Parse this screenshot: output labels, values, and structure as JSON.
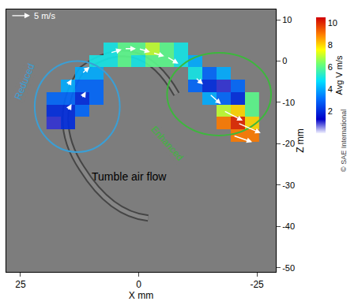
{
  "chart_data": {
    "type": "heatmap",
    "x_label": "X mm",
    "y_label": "Z mm",
    "xlim": [
      28,
      -29
    ],
    "xticks": [
      25,
      0,
      -25
    ],
    "ylim": [
      -51,
      12.5
    ],
    "yticks": [
      10,
      0,
      -10,
      -20,
      -30,
      -40,
      -50
    ],
    "x": [
      18,
      15,
      12,
      9,
      6,
      3,
      0,
      -3,
      -6,
      -9,
      -12,
      -15,
      -18,
      -21,
      -24
    ],
    "y": [
      3,
      0,
      -3,
      -6,
      -9,
      -12,
      -15,
      -18
    ],
    "values": [
      [
        null,
        null,
        null,
        null,
        5,
        6,
        6,
        7,
        6,
        5,
        null,
        null,
        null,
        null,
        null
      ],
      [
        null,
        null,
        null,
        5,
        5,
        6,
        5,
        6,
        6,
        5,
        4,
        null,
        null,
        null,
        null
      ],
      [
        null,
        null,
        4,
        4,
        null,
        null,
        null,
        null,
        null,
        null,
        5,
        3,
        4,
        null,
        null
      ],
      [
        null,
        4,
        3,
        3,
        null,
        null,
        null,
        null,
        null,
        null,
        3,
        2,
        1,
        3,
        null
      ],
      [
        3,
        3,
        2,
        3,
        null,
        null,
        null,
        null,
        null,
        null,
        null,
        4,
        3,
        2,
        6
      ],
      [
        2,
        2,
        3,
        null,
        null,
        null,
        null,
        null,
        null,
        null,
        null,
        null,
        7,
        8,
        6
      ],
      [
        1,
        2,
        null,
        null,
        null,
        null,
        null,
        null,
        null,
        null,
        null,
        null,
        9,
        10,
        8
      ],
      [
        null,
        null,
        null,
        null,
        null,
        null,
        null,
        null,
        null,
        null,
        null,
        null,
        null,
        9,
        9
      ]
    ],
    "colorbar": {
      "title": "Avg V m/s",
      "range": [
        0,
        10.5
      ],
      "ticks": [
        2,
        4,
        6,
        8,
        10
      ]
    },
    "vectors": [
      {
        "x": 15,
        "y": -12,
        "u": -1,
        "w": 2
      },
      {
        "x": 12,
        "y": -9,
        "u": -1,
        "w": 2
      },
      {
        "x": 15,
        "y": -6,
        "u": -1,
        "w": 2
      },
      {
        "x": 12,
        "y": -3,
        "u": -2,
        "w": 2
      },
      {
        "x": 6,
        "y": 2,
        "u": -3,
        "w": 1
      },
      {
        "x": 3,
        "y": 3,
        "u": -3,
        "w": 0
      },
      {
        "x": 0,
        "y": 3,
        "u": -3,
        "w": -1
      },
      {
        "x": -3,
        "y": 2,
        "u": -3,
        "w": -1
      },
      {
        "x": -6,
        "y": 1,
        "u": -3,
        "w": -2
      },
      {
        "x": -12,
        "y": -4,
        "u": -2,
        "w": -2
      },
      {
        "x": -15,
        "y": -8,
        "u": -3,
        "w": -3
      },
      {
        "x": -18,
        "y": -12,
        "u": -5,
        "w": -3
      },
      {
        "x": -21,
        "y": -15,
        "u": -6,
        "w": -3
      },
      {
        "x": -20,
        "y": -18,
        "u": -5,
        "w": -2
      }
    ],
    "reference_vector": {
      "value": 5,
      "label": "5 m/s"
    },
    "annotations": [
      {
        "text": "Reduced",
        "color": "#3a9fd6"
      },
      {
        "text": "Enhanced",
        "color": "#3cb83c"
      },
      {
        "text": "Tumble air flow",
        "color": "#000000"
      }
    ],
    "copyright": "© SAE International"
  }
}
